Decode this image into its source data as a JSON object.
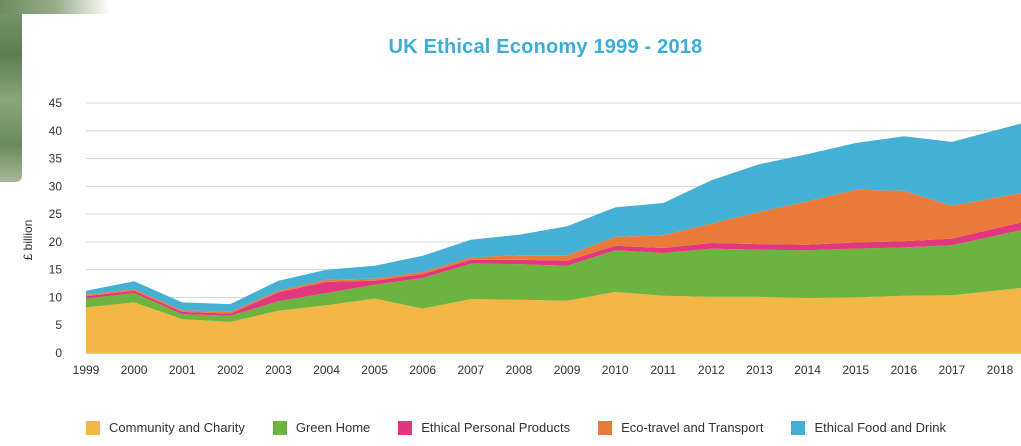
{
  "chart_data": {
    "type": "area",
    "stacked": true,
    "title": "UK Ethical Economy 1999 - 2018",
    "ylabel": "£ billion",
    "xlabel": "",
    "ylim": [
      0,
      45
    ],
    "yticks": [
      0,
      5,
      10,
      15,
      20,
      25,
      30,
      35,
      40,
      45
    ],
    "grid": true,
    "legend_position": "bottom",
    "x": [
      "1999",
      "2000",
      "2001",
      "2002",
      "2003",
      "2004",
      "2005",
      "2006",
      "2007",
      "2008",
      "2009",
      "2010",
      "2011",
      "2012",
      "2013",
      "2014",
      "2015",
      "2016",
      "2017",
      "2018"
    ],
    "series": [
      {
        "name": "Community and Charity",
        "color": "#f4b747",
        "values": [
          8.2,
          9.1,
          6.1,
          5.6,
          7.6,
          8.6,
          9.8,
          8.0,
          9.7,
          9.6,
          9.4,
          11.0,
          10.3,
          10.1,
          10.1,
          9.9,
          10.0,
          10.3,
          10.4,
          11.3
        ]
      },
      {
        "name": "Green Home",
        "color": "#6db33f",
        "values": [
          1.6,
          1.7,
          0.9,
          1.1,
          1.7,
          2.2,
          2.5,
          5.5,
          6.4,
          6.4,
          6.3,
          7.5,
          7.7,
          8.7,
          8.5,
          8.6,
          8.8,
          8.7,
          9.0,
          10.0
        ]
      },
      {
        "name": "Ethical Personal Products",
        "color": "#e2367e",
        "values": [
          0.4,
          0.4,
          0.4,
          0.4,
          1.6,
          2.0,
          0.7,
          0.7,
          0.7,
          0.8,
          0.9,
          0.8,
          0.9,
          1.0,
          1.0,
          1.0,
          1.1,
          1.1,
          1.2,
          1.3
        ]
      },
      {
        "name": "Eco-travel and Transport",
        "color": "#ea7a3a",
        "values": [
          0.3,
          0.3,
          0.3,
          0.3,
          0.3,
          0.4,
          0.4,
          0.4,
          0.4,
          0.8,
          1.0,
          1.6,
          2.3,
          3.5,
          5.8,
          7.8,
          9.5,
          9.1,
          5.9,
          5.5
        ]
      },
      {
        "name": "Ethical Food and Drink",
        "color": "#44b0d3",
        "values": [
          0.7,
          1.4,
          1.4,
          1.4,
          1.8,
          1.8,
          2.3,
          2.9,
          3.2,
          3.7,
          5.2,
          5.3,
          5.8,
          7.8,
          8.6,
          8.5,
          8.4,
          9.8,
          11.5,
          12.2
        ]
      }
    ]
  }
}
